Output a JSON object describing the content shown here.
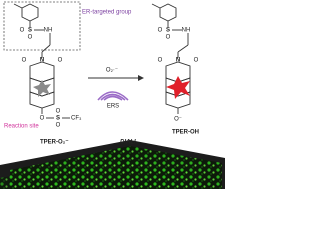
{
  "header": {
    "group_label": "ER-targeted group",
    "site_label": "Reaction site",
    "stimulus": "O₂·⁻",
    "organelle": "ERS",
    "method": "DIALI"
  },
  "probe": {
    "name": "TPER-O₂⁻",
    "atoms": [
      "S",
      "O",
      "O",
      "NH",
      "O",
      "N",
      "O",
      "O",
      "S",
      "O",
      "O",
      "CF₃"
    ]
  },
  "product": {
    "name": "TPER-OH",
    "atoms": [
      "S",
      "O",
      "O",
      "NH",
      "O",
      "N",
      "O",
      "O⁻"
    ]
  }
}
